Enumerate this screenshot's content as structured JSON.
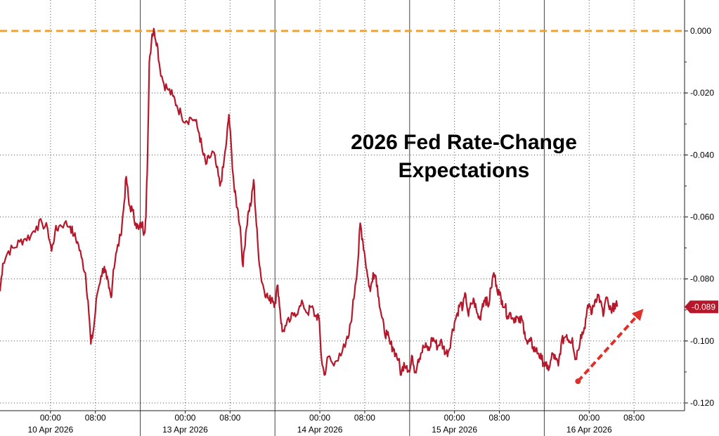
{
  "chart_data": {
    "type": "line",
    "title_lines": [
      "2026 Fed Rate-Change",
      "Expectations"
    ],
    "ylim": [
      -0.12,
      0.0
    ],
    "y_ticks": [
      {
        "value": 0.0,
        "label": "0.000"
      },
      {
        "value": -0.02,
        "label": "-0.020"
      },
      {
        "value": -0.04,
        "label": "-0.040"
      },
      {
        "value": -0.06,
        "label": "-0.060"
      },
      {
        "value": -0.08,
        "label": "-0.080"
      },
      {
        "value": -0.1,
        "label": "-0.100"
      },
      {
        "value": -0.12,
        "label": "-0.120"
      }
    ],
    "x_time_ticks": [
      {
        "t": 24,
        "label": "00:00"
      },
      {
        "t": 32,
        "label": "08:00"
      },
      {
        "t": 48,
        "label": "00:00"
      },
      {
        "t": 56,
        "label": "08:00"
      },
      {
        "t": 72,
        "label": "00:00"
      },
      {
        "t": 80,
        "label": "08:00"
      },
      {
        "t": 96,
        "label": "00:00"
      },
      {
        "t": 104,
        "label": "08:00"
      },
      {
        "t": 120,
        "label": "00:00"
      },
      {
        "t": 128,
        "label": "08:00"
      }
    ],
    "x_date_labels": [
      {
        "t": 24,
        "label": "10 Apr 2026"
      },
      {
        "t": 48,
        "label": "13 Apr 2026"
      },
      {
        "t": 72,
        "label": "14 Apr 2026"
      },
      {
        "t": 96,
        "label": "15 Apr 2026"
      },
      {
        "t": 120,
        "label": "16 Apr 2026"
      }
    ],
    "session_breaks": [
      40,
      64,
      88,
      112
    ],
    "xlim": [
      15,
      137
    ],
    "reference_line": {
      "value": 0.0,
      "color": "#f0a030"
    },
    "last_value": {
      "value": -0.089,
      "label": "-0.089"
    },
    "series": [
      {
        "color": "#b5172b",
        "points": [
          [
            15,
            -0.084
          ],
          [
            15.5,
            -0.075
          ],
          [
            16.5,
            -0.071
          ],
          [
            17.5,
            -0.07
          ],
          [
            18.5,
            -0.068
          ],
          [
            19.5,
            -0.067
          ],
          [
            20.5,
            -0.066
          ],
          [
            21.5,
            -0.063
          ],
          [
            22.5,
            -0.062
          ],
          [
            23.5,
            -0.064
          ],
          [
            24.2,
            -0.071
          ],
          [
            24.8,
            -0.065
          ],
          [
            25.5,
            -0.063
          ],
          [
            26.5,
            -0.062
          ],
          [
            27.5,
            -0.063
          ],
          [
            28.2,
            -0.066
          ],
          [
            28.8,
            -0.068
          ],
          [
            29.5,
            -0.073
          ],
          [
            30.2,
            -0.078
          ],
          [
            30.7,
            -0.087
          ],
          [
            31.2,
            -0.101
          ],
          [
            31.7,
            -0.096
          ],
          [
            32.3,
            -0.085
          ],
          [
            33,
            -0.079
          ],
          [
            33.6,
            -0.076
          ],
          [
            34,
            -0.08
          ],
          [
            34.4,
            -0.083
          ],
          [
            34.8,
            -0.086
          ],
          [
            35.2,
            -0.077
          ],
          [
            35.8,
            -0.071
          ],
          [
            36.5,
            -0.066
          ],
          [
            37,
            -0.058
          ],
          [
            37.5,
            -0.047
          ],
          [
            38,
            -0.056
          ],
          [
            38.6,
            -0.058
          ],
          [
            39.2,
            -0.062
          ],
          [
            39.7,
            -0.064
          ],
          [
            40.3,
            -0.062
          ],
          [
            40.7,
            -0.065
          ],
          [
            41,
            -0.06
          ],
          [
            41.3,
            -0.04
          ],
          [
            41.6,
            -0.01
          ],
          [
            42.1,
            -0.001
          ],
          [
            42.5,
            0.0
          ],
          [
            43,
            -0.004
          ],
          [
            43.5,
            -0.012
          ],
          [
            44.2,
            -0.017
          ],
          [
            45,
            -0.019
          ],
          [
            45.8,
            -0.021
          ],
          [
            46.5,
            -0.024
          ],
          [
            47.3,
            -0.027
          ],
          [
            48.2,
            -0.029
          ],
          [
            49,
            -0.028
          ],
          [
            49.8,
            -0.029
          ],
          [
            50.5,
            -0.033
          ],
          [
            51.1,
            -0.039
          ],
          [
            51.7,
            -0.043
          ],
          [
            52.3,
            -0.041
          ],
          [
            53,
            -0.039
          ],
          [
            53.6,
            -0.044
          ],
          [
            54.2,
            -0.05
          ],
          [
            54.8,
            -0.044
          ],
          [
            55.4,
            -0.035
          ],
          [
            55.8,
            -0.027
          ],
          [
            56.3,
            -0.04
          ],
          [
            56.8,
            -0.052
          ],
          [
            57.3,
            -0.057
          ],
          [
            57.8,
            -0.063
          ],
          [
            58.3,
            -0.076
          ],
          [
            58.8,
            -0.065
          ],
          [
            59.3,
            -0.058
          ],
          [
            59.8,
            -0.055
          ],
          [
            60.2,
            -0.048
          ],
          [
            60.6,
            -0.06
          ],
          [
            61,
            -0.07
          ],
          [
            61.5,
            -0.079
          ],
          [
            62,
            -0.083
          ],
          [
            62.5,
            -0.085
          ],
          [
            63,
            -0.087
          ],
          [
            63.5,
            -0.086
          ],
          [
            64,
            -0.088
          ],
          [
            64.5,
            -0.082
          ],
          [
            64.9,
            -0.09
          ],
          [
            65.3,
            -0.097
          ],
          [
            66,
            -0.095
          ],
          [
            66.8,
            -0.093
          ],
          [
            67.5,
            -0.091
          ],
          [
            68.2,
            -0.09
          ],
          [
            69,
            -0.088
          ],
          [
            69.8,
            -0.091
          ],
          [
            70.5,
            -0.089
          ],
          [
            71.2,
            -0.092
          ],
          [
            71.8,
            -0.092
          ],
          [
            72.3,
            -0.106
          ],
          [
            72.8,
            -0.111
          ],
          [
            73.5,
            -0.105
          ],
          [
            74.5,
            -0.108
          ],
          [
            75.5,
            -0.104
          ],
          [
            76.5,
            -0.102
          ],
          [
            77.2,
            -0.098
          ],
          [
            77.8,
            -0.09
          ],
          [
            78.3,
            -0.082
          ],
          [
            78.8,
            -0.074
          ],
          [
            79.2,
            -0.062
          ],
          [
            79.6,
            -0.067
          ],
          [
            80,
            -0.072
          ],
          [
            80.5,
            -0.079
          ],
          [
            81,
            -0.084
          ],
          [
            81.5,
            -0.078
          ],
          [
            82,
            -0.079
          ],
          [
            82.5,
            -0.086
          ],
          [
            83,
            -0.092
          ],
          [
            83.5,
            -0.097
          ],
          [
            84,
            -0.098
          ],
          [
            84.5,
            -0.101
          ],
          [
            85,
            -0.102
          ],
          [
            85.5,
            -0.104
          ],
          [
            86,
            -0.106
          ],
          [
            86.5,
            -0.111
          ],
          [
            87,
            -0.107
          ],
          [
            87.5,
            -0.108
          ],
          [
            88,
            -0.11
          ],
          [
            88.5,
            -0.105
          ],
          [
            89,
            -0.11
          ],
          [
            89.5,
            -0.106
          ],
          [
            90,
            -0.104
          ],
          [
            90.5,
            -0.102
          ],
          [
            91,
            -0.102
          ],
          [
            91.5,
            -0.103
          ],
          [
            92,
            -0.099
          ],
          [
            92.5,
            -0.1
          ],
          [
            93,
            -0.102
          ],
          [
            93.5,
            -0.1
          ],
          [
            94,
            -0.102
          ],
          [
            94.5,
            -0.104
          ],
          [
            95,
            -0.103
          ],
          [
            95.5,
            -0.098
          ],
          [
            96,
            -0.094
          ],
          [
            96.5,
            -0.091
          ],
          [
            97,
            -0.088
          ],
          [
            97.5,
            -0.089
          ],
          [
            98,
            -0.085
          ],
          [
            98.5,
            -0.092
          ],
          [
            99,
            -0.088
          ],
          [
            99.5,
            -0.087
          ],
          [
            100,
            -0.091
          ],
          [
            100.5,
            -0.093
          ],
          [
            101,
            -0.088
          ],
          [
            101.5,
            -0.086
          ],
          [
            102,
            -0.089
          ],
          [
            102.5,
            -0.083
          ],
          [
            103,
            -0.078
          ],
          [
            103.5,
            -0.082
          ],
          [
            104,
            -0.085
          ],
          [
            104.5,
            -0.087
          ],
          [
            105,
            -0.089
          ],
          [
            105.5,
            -0.092
          ],
          [
            106,
            -0.091
          ],
          [
            106.5,
            -0.093
          ],
          [
            107,
            -0.092
          ],
          [
            107.5,
            -0.094
          ],
          [
            108,
            -0.093
          ],
          [
            108.5,
            -0.097
          ],
          [
            109,
            -0.101
          ],
          [
            109.5,
            -0.1
          ],
          [
            110,
            -0.102
          ],
          [
            110.5,
            -0.103
          ],
          [
            111,
            -0.104
          ],
          [
            111.5,
            -0.106
          ],
          [
            112,
            -0.107
          ],
          [
            112.5,
            -0.109
          ],
          [
            113,
            -0.108
          ],
          [
            113.5,
            -0.104
          ],
          [
            114,
            -0.106
          ],
          [
            114.5,
            -0.108
          ],
          [
            115,
            -0.101
          ],
          [
            115.5,
            -0.099
          ],
          [
            116,
            -0.098
          ],
          [
            116.5,
            -0.1
          ],
          [
            117,
            -0.099
          ],
          [
            117.5,
            -0.106
          ],
          [
            118,
            -0.103
          ],
          [
            118.5,
            -0.098
          ],
          [
            119,
            -0.097
          ],
          [
            119.5,
            -0.092
          ],
          [
            120,
            -0.088
          ],
          [
            120.5,
            -0.091
          ],
          [
            121,
            -0.087
          ],
          [
            121.5,
            -0.085
          ],
          [
            122,
            -0.087
          ],
          [
            122.5,
            -0.092
          ],
          [
            123,
            -0.086
          ],
          [
            123.5,
            -0.089
          ],
          [
            124,
            -0.091
          ],
          [
            124.5,
            -0.088
          ],
          [
            125,
            -0.089
          ]
        ]
      }
    ],
    "trend_arrow": {
      "from": [
        118,
        -0.113
      ],
      "to": [
        129,
        -0.091
      ],
      "color": "#e0302a"
    }
  }
}
